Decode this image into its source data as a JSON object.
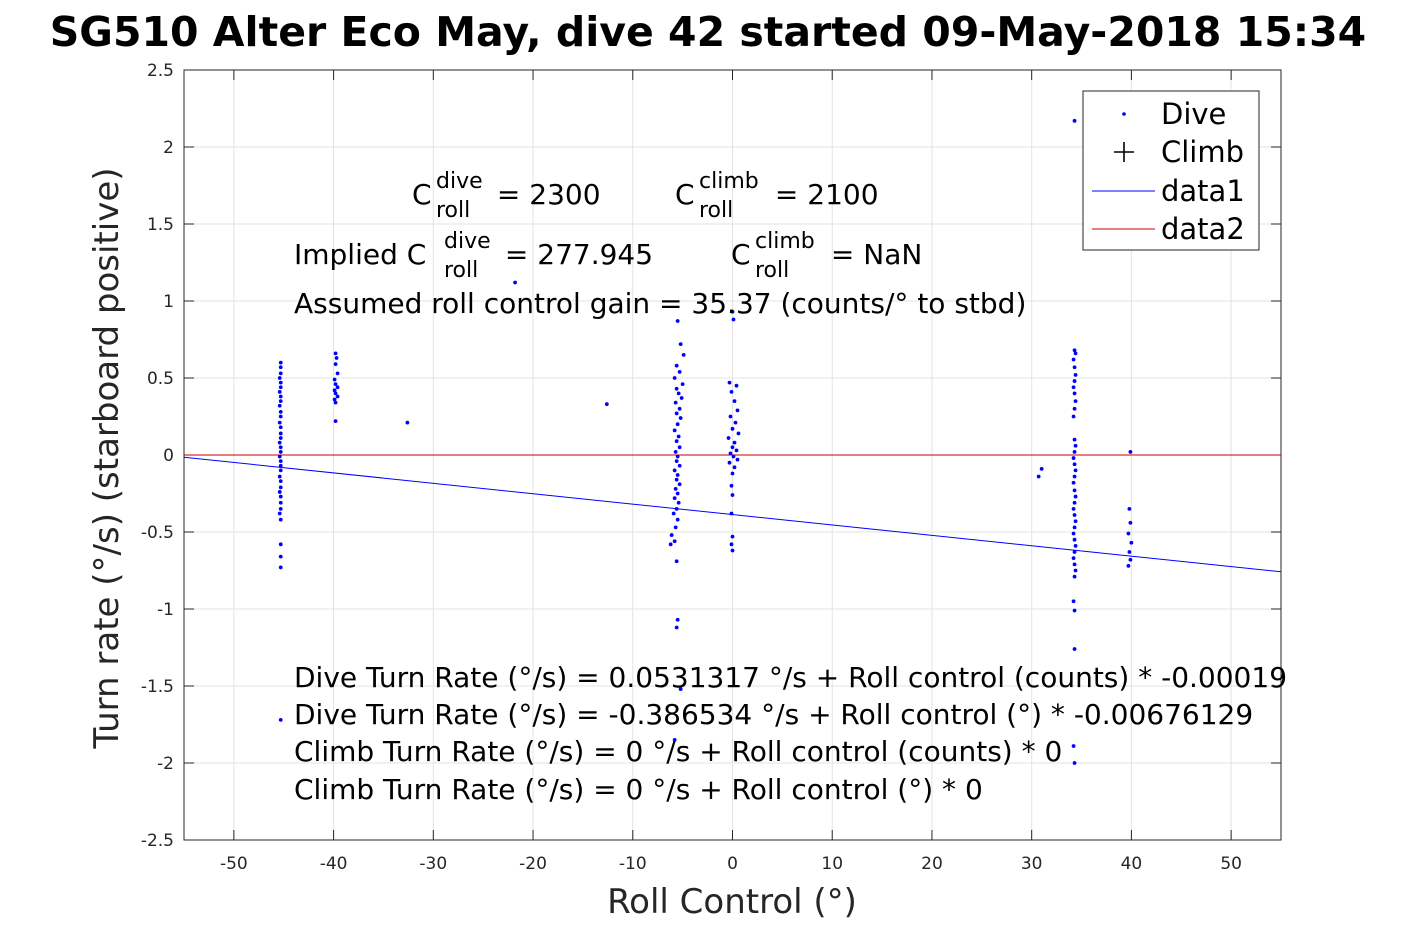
{
  "chart_data": {
    "type": "scatter",
    "title": "SG510 Alter Eco May, dive 42 started 09-May-2018 15:34",
    "xlabel": "Roll Control (°)",
    "ylabel": "Turn rate (°/s) (starboard positive)",
    "xlim": [
      -55,
      55
    ],
    "ylim": [
      -2.5,
      2.5
    ],
    "xticks": [
      "-50",
      "-40",
      "-30",
      "-20",
      "-10",
      "0",
      "10",
      "20",
      "30",
      "40",
      "50"
    ],
    "yticks": [
      "2.5",
      "2",
      "1.5",
      "1",
      "0.5",
      "0",
      "-0.5",
      "-1",
      "-1.5",
      "-2",
      "-2.5"
    ],
    "grid": true,
    "legend_position": "top-right",
    "legend": [
      "Dive",
      "Climb",
      "data1",
      "data2"
    ],
    "series": [
      {
        "name": "Dive",
        "marker": "dot",
        "color": "#0000ff",
        "points": [
          [
            -45.3,
            0.6
          ],
          [
            -45.3,
            0.57
          ],
          [
            -45.3,
            0.53
          ],
          [
            -45.4,
            0.5
          ],
          [
            -45.3,
            0.47
          ],
          [
            -45.3,
            0.44
          ],
          [
            -45.4,
            0.41
          ],
          [
            -45.3,
            0.38
          ],
          [
            -45.3,
            0.35
          ],
          [
            -45.4,
            0.32
          ],
          [
            -45.3,
            0.28
          ],
          [
            -45.3,
            0.25
          ],
          [
            -45.4,
            0.21
          ],
          [
            -45.3,
            0.18
          ],
          [
            -45.3,
            0.14
          ],
          [
            -45.3,
            0.11
          ],
          [
            -45.4,
            0.08
          ],
          [
            -45.3,
            0.05
          ],
          [
            -45.3,
            0.02
          ],
          [
            -45.4,
            -0.01
          ],
          [
            -45.3,
            -0.04
          ],
          [
            -45.3,
            -0.07
          ],
          [
            -45.3,
            -0.1
          ],
          [
            -45.4,
            -0.14
          ],
          [
            -45.3,
            -0.17
          ],
          [
            -45.3,
            -0.21
          ],
          [
            -45.4,
            -0.24
          ],
          [
            -45.3,
            -0.27
          ],
          [
            -45.3,
            -0.31
          ],
          [
            -45.3,
            -0.35
          ],
          [
            -45.4,
            -0.38
          ],
          [
            -45.3,
            -0.42
          ],
          [
            -45.3,
            -0.58
          ],
          [
            -45.3,
            -0.66
          ],
          [
            -45.3,
            -0.73
          ],
          [
            -45.3,
            -1.72
          ],
          [
            -39.8,
            0.66
          ],
          [
            -39.7,
            0.63
          ],
          [
            -39.8,
            0.59
          ],
          [
            -39.6,
            0.53
          ],
          [
            -39.9,
            0.49
          ],
          [
            -39.8,
            0.46
          ],
          [
            -39.6,
            0.44
          ],
          [
            -39.9,
            0.42
          ],
          [
            -39.8,
            0.4
          ],
          [
            -39.6,
            0.38
          ],
          [
            -39.9,
            0.36
          ],
          [
            -39.8,
            0.34
          ],
          [
            -39.8,
            0.22
          ],
          [
            -32.6,
            0.21
          ],
          [
            -21.8,
            1.12
          ],
          [
            -12.6,
            0.33
          ],
          [
            -5.5,
            0.87
          ],
          [
            -5.2,
            0.72
          ],
          [
            -4.9,
            0.65
          ],
          [
            -5.6,
            0.58
          ],
          [
            -5.3,
            0.54
          ],
          [
            -5.8,
            0.5
          ],
          [
            -5.0,
            0.46
          ],
          [
            -5.6,
            0.43
          ],
          [
            -5.4,
            0.4
          ],
          [
            -5.1,
            0.37
          ],
          [
            -5.7,
            0.34
          ],
          [
            -5.3,
            0.3
          ],
          [
            -5.6,
            0.27
          ],
          [
            -5.2,
            0.24
          ],
          [
            -5.5,
            0.2
          ],
          [
            -5.8,
            0.16
          ],
          [
            -5.4,
            0.12
          ],
          [
            -5.6,
            0.09
          ],
          [
            -5.3,
            0.05
          ],
          [
            -5.7,
            0.02
          ],
          [
            -5.5,
            -0.01
          ],
          [
            -5.6,
            -0.04
          ],
          [
            -5.3,
            -0.07
          ],
          [
            -5.8,
            -0.1
          ],
          [
            -5.5,
            -0.13
          ],
          [
            -5.6,
            -0.16
          ],
          [
            -5.3,
            -0.19
          ],
          [
            -5.7,
            -0.22
          ],
          [
            -5.5,
            -0.25
          ],
          [
            -5.8,
            -0.28
          ],
          [
            -5.4,
            -0.31
          ],
          [
            -5.6,
            -0.35
          ],
          [
            -5.9,
            -0.38
          ],
          [
            -5.5,
            -0.42
          ],
          [
            -5.7,
            -0.47
          ],
          [
            -6.1,
            -0.52
          ],
          [
            -5.8,
            -0.56
          ],
          [
            -6.2,
            -0.58
          ],
          [
            -5.6,
            -0.69
          ],
          [
            -5.5,
            -1.07
          ],
          [
            -5.6,
            -1.12
          ],
          [
            -5.8,
            -1.85
          ],
          [
            -5.2,
            -1.52
          ],
          [
            0.0,
            0.93
          ],
          [
            0.1,
            0.88
          ],
          [
            -0.3,
            0.47
          ],
          [
            0.4,
            0.45
          ],
          [
            -0.1,
            0.41
          ],
          [
            0.2,
            0.35
          ],
          [
            0.5,
            0.29
          ],
          [
            -0.2,
            0.25
          ],
          [
            0.3,
            0.21
          ],
          [
            0.0,
            0.17
          ],
          [
            0.6,
            0.14
          ],
          [
            -0.4,
            0.11
          ],
          [
            0.2,
            0.08
          ],
          [
            0.0,
            0.05
          ],
          [
            0.4,
            0.03
          ],
          [
            -0.2,
            0.01
          ],
          [
            0.1,
            -0.01
          ],
          [
            0.5,
            -0.03
          ],
          [
            -0.3,
            -0.05
          ],
          [
            0.2,
            -0.08
          ],
          [
            0.0,
            -0.12
          ],
          [
            -0.1,
            -0.2
          ],
          [
            0.0,
            -0.26
          ],
          [
            -0.1,
            -0.38
          ],
          [
            0.0,
            -0.53
          ],
          [
            -0.1,
            -0.58
          ],
          [
            0.0,
            -0.62
          ],
          [
            30.7,
            -0.14
          ],
          [
            31.0,
            -0.09
          ],
          [
            34.3,
            0.68
          ],
          [
            34.4,
            0.66
          ],
          [
            34.2,
            0.62
          ],
          [
            34.3,
            0.57
          ],
          [
            34.4,
            0.52
          ],
          [
            34.3,
            0.48
          ],
          [
            34.2,
            0.44
          ],
          [
            34.3,
            0.4
          ],
          [
            34.4,
            0.35
          ],
          [
            34.3,
            0.3
          ],
          [
            34.2,
            0.25
          ],
          [
            34.3,
            0.1
          ],
          [
            34.4,
            0.06
          ],
          [
            34.3,
            0.02
          ],
          [
            34.2,
            -0.02
          ],
          [
            34.3,
            -0.06
          ],
          [
            34.4,
            -0.1
          ],
          [
            34.3,
            -0.14
          ],
          [
            34.2,
            -0.18
          ],
          [
            34.3,
            -0.23
          ],
          [
            34.4,
            -0.27
          ],
          [
            34.3,
            -0.31
          ],
          [
            34.2,
            -0.35
          ],
          [
            34.3,
            -0.39
          ],
          [
            34.4,
            -0.43
          ],
          [
            34.3,
            -0.47
          ],
          [
            34.2,
            -0.51
          ],
          [
            34.3,
            -0.55
          ],
          [
            34.4,
            -0.59
          ],
          [
            34.3,
            -0.63
          ],
          [
            34.2,
            -0.67
          ],
          [
            34.3,
            -0.71
          ],
          [
            34.4,
            -0.75
          ],
          [
            34.3,
            -0.79
          ],
          [
            34.2,
            -0.95
          ],
          [
            34.3,
            -1.01
          ],
          [
            34.3,
            -1.26
          ],
          [
            34.2,
            -1.89
          ],
          [
            34.3,
            -2.0
          ],
          [
            34.3,
            2.17
          ],
          [
            39.9,
            0.02
          ],
          [
            39.8,
            -0.35
          ],
          [
            39.9,
            -0.44
          ],
          [
            39.7,
            -0.51
          ],
          [
            40.0,
            -0.57
          ],
          [
            39.8,
            -0.63
          ],
          [
            39.9,
            -0.68
          ],
          [
            39.7,
            -0.72
          ]
        ]
      },
      {
        "name": "Climb",
        "marker": "plus",
        "color": "#000000",
        "points": []
      },
      {
        "name": "data1",
        "type": "line",
        "color": "#0000ff",
        "x": [
          -55,
          55
        ],
        "y": [
          -0.0147,
          -0.7584
        ]
      },
      {
        "name": "data2",
        "type": "line",
        "color": "#cc0000",
        "x": [
          -55,
          55
        ],
        "y": [
          0,
          0
        ]
      }
    ],
    "annotations": {
      "c_dive_base": "C",
      "c_dive_sup": "dive",
      "c_dive_sub": "roll",
      "c_dive_val": " = 2300",
      "c_climb_base": "C",
      "c_climb_sup": "climb",
      "c_climb_sub": "roll",
      "c_climb_val": " = 2100",
      "implied_prefix": "Implied C",
      "implied_dive_sup": "dive",
      "implied_dive_sub": "roll",
      "implied_dive_val": " = 277.945",
      "implied_climb_base": "C",
      "implied_climb_sup": "climb",
      "implied_climb_sub": "roll",
      "implied_climb_val": " = NaN",
      "gain": "Assumed roll control gain = 35.37 (counts/° to stbd)",
      "eq1": "Dive Turn Rate (°/s) = 0.0531317 °/s + Roll control (counts) * -0.00019",
      "eq2": "Dive Turn Rate (°/s) = -0.386534 °/s + Roll control (°) * -0.00676129",
      "eq3": "Climb Turn Rate (°/s) = 0 °/s + Roll control (counts) * 0",
      "eq4": "Climb Turn Rate (°/s) = 0 °/s + Roll control (°) * 0"
    }
  }
}
